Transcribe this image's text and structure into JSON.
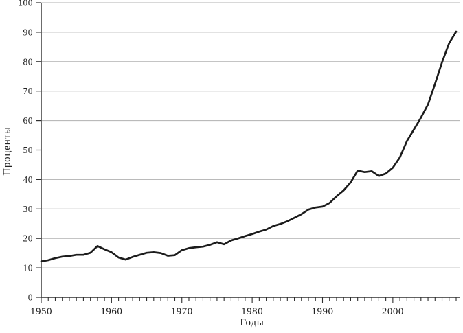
{
  "chart_data": {
    "type": "line",
    "title": "",
    "xlabel": "Годы",
    "ylabel": "Проценты",
    "xlim": [
      1950,
      2009
    ],
    "ylim": [
      0,
      100
    ],
    "y_ticks": [
      0,
      10,
      20,
      30,
      40,
      50,
      60,
      70,
      80,
      90,
      100
    ],
    "x_major_ticks": [
      1950,
      1960,
      1970,
      1980,
      1990,
      2000
    ],
    "x_minor_tick_interval": 1,
    "grid": "horizontal",
    "legend": "none",
    "line_color": "#1c1c1c",
    "grid_color": "#b0b0b0",
    "axis_color": "#2e2e2e",
    "background_color": "#ffffff",
    "series": [
      {
        "name": "Проценты",
        "x": [
          1950,
          1951,
          1952,
          1953,
          1954,
          1955,
          1956,
          1957,
          1958,
          1959,
          1960,
          1961,
          1962,
          1963,
          1964,
          1965,
          1966,
          1967,
          1968,
          1969,
          1970,
          1971,
          1972,
          1973,
          1974,
          1975,
          1976,
          1977,
          1978,
          1979,
          1980,
          1981,
          1982,
          1983,
          1984,
          1985,
          1986,
          1987,
          1988,
          1989,
          1990,
          1991,
          1992,
          1993,
          1994,
          1995,
          1996,
          1997,
          1998,
          1999,
          2000,
          2001,
          2002,
          2003,
          2004,
          2005,
          2006,
          2007,
          2008,
          2009
        ],
        "values": [
          12.2,
          12.6,
          13.3,
          13.8,
          14.0,
          14.4,
          14.4,
          15.1,
          17.4,
          16.3,
          15.3,
          13.5,
          12.8,
          13.7,
          14.4,
          15.1,
          15.3,
          15.0,
          14.1,
          14.3,
          16.0,
          16.7,
          17.0,
          17.2,
          17.8,
          18.7,
          18.0,
          19.3,
          20.0,
          20.8,
          21.5,
          22.3,
          23.0,
          24.2,
          24.9,
          25.8,
          27.0,
          28.2,
          29.8,
          30.5,
          30.8,
          32.0,
          34.3,
          36.3,
          39.0,
          43.0,
          42.5,
          42.8,
          41.2,
          42.0,
          44.0,
          47.5,
          53.0,
          57.0,
          61.0,
          65.5,
          72.5,
          79.8,
          86.3,
          90.2
        ]
      }
    ]
  }
}
